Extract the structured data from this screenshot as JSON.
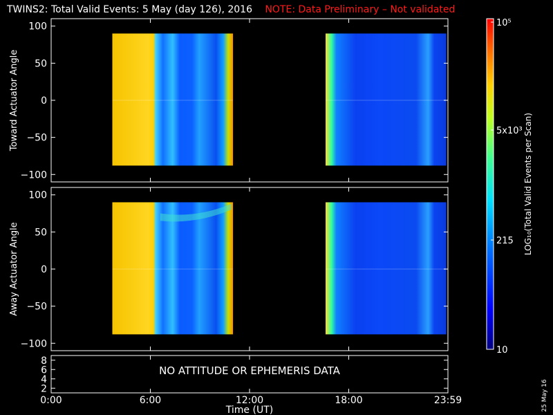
{
  "header": {
    "title": "TWINS2: Total Valid Events:  5 May (day 126), 2016",
    "note": "NOTE: Data Preliminary – Not validated"
  },
  "date_stamp": "25 May 16",
  "no_data_message": "NO ATTITUDE OR EPHEMERIS DATA",
  "chart_data": [
    {
      "type": "heatmap",
      "panel": "top",
      "ylabel": "Toward Actuator Angle",
      "ylim": [
        -110,
        110
      ],
      "yticks": [
        "100",
        "50",
        "0",
        "−50",
        "−100"
      ],
      "xlim": [
        0,
        24
      ],
      "data_x_ranges_hours": [
        [
          3.7,
          11.0
        ],
        [
          16.6,
          23.9
        ]
      ],
      "data_y_range": [
        -88,
        90
      ]
    },
    {
      "type": "heatmap",
      "panel": "middle",
      "ylabel": "Away Actuator Angle",
      "ylim": [
        -110,
        110
      ],
      "yticks": [
        "100",
        "50",
        "0",
        "−50",
        "−100"
      ],
      "xlim": [
        0,
        24
      ],
      "data_x_ranges_hours": [
        [
          3.7,
          11.0
        ],
        [
          16.6,
          23.9
        ]
      ],
      "data_y_range": [
        -88,
        90
      ]
    },
    {
      "type": "line",
      "panel": "bottom",
      "yticks": [
        "8",
        "6",
        "4",
        "2"
      ],
      "ylim": [
        1,
        9
      ],
      "xlim": [
        0,
        24
      ],
      "xticks": [
        "0:00",
        "6:00",
        "12:00",
        "18:00",
        "23:59"
      ],
      "xlabel": "Time (UT)"
    }
  ],
  "colorbar": {
    "ticks": [
      "10",
      "215",
      "5x10³",
      "10⁵"
    ],
    "label": "LOG₁₀(Total Valid Events per Scan)"
  }
}
